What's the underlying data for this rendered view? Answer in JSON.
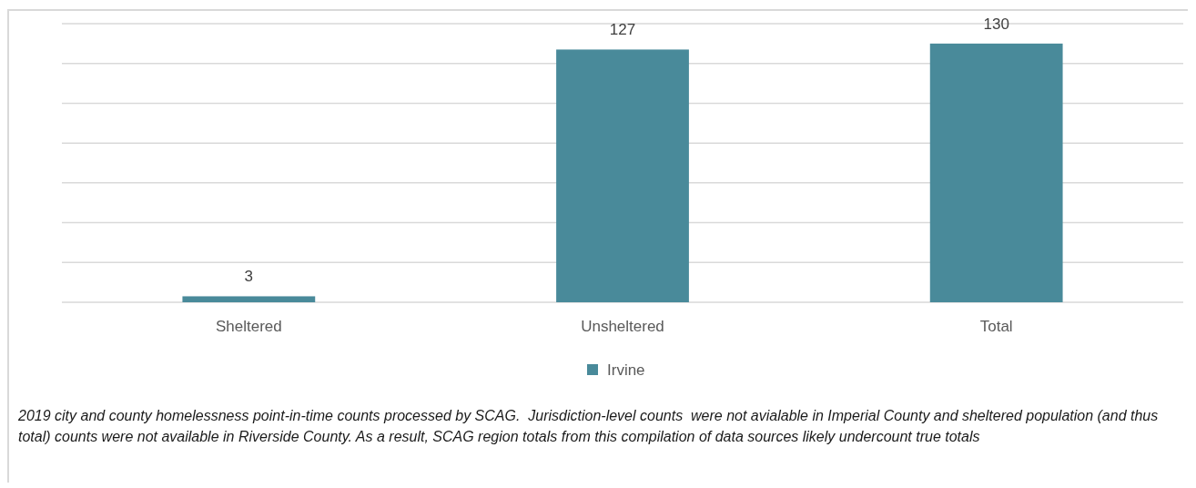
{
  "chart_data": {
    "type": "bar",
    "categories": [
      "Sheltered",
      "Unsheltered",
      "Total"
    ],
    "series": [
      {
        "name": "Irvine",
        "color": "#498a9a",
        "values": [
          3,
          127,
          130
        ]
      }
    ],
    "ylim": [
      0,
      140
    ],
    "yticks": [
      {
        "value": 0,
        "label": null
      },
      {
        "value": 20,
        "label": null
      },
      {
        "value": 40,
        "label": null
      },
      {
        "value": 60,
        "label": null
      },
      {
        "value": 80,
        "label": null
      },
      {
        "value": 100,
        "label": null
      },
      {
        "value": 120,
        "label": null
      },
      {
        "value": 140,
        "label": null
      }
    ],
    "tick_labels": "x",
    "grid": "y",
    "data_labels": true,
    "legend": "bottom",
    "annotations": [
      "2019 city and county homelessness point-in-time counts processed by SCAG.  Jurisdiction-level counts  were not avialable in Imperial County and sheltered population (and thus total) counts were not available in Riverside County. As a result, SCAG region totals from this compilation of data sources likely undercount true totals"
    ]
  }
}
